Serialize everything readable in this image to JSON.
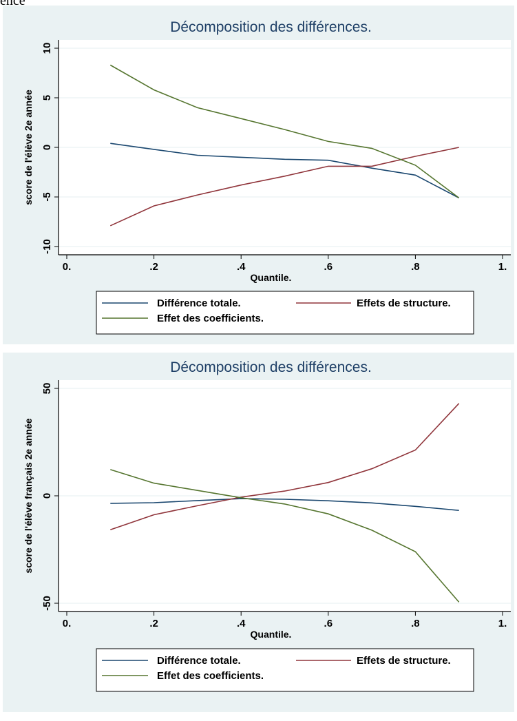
{
  "page": {
    "clipped_heading": "ence"
  },
  "chart_data": [
    {
      "type": "line",
      "title": "Décomposition des différences.",
      "xlabel": "Quantile.",
      "ylabel": "score de l'élève 2e année",
      "xlim": [
        0,
        1
      ],
      "ylim": [
        -10,
        10
      ],
      "x_ticks": [
        0,
        0.2,
        0.4,
        0.6,
        0.8,
        1
      ],
      "x_tick_labels": [
        "0.",
        ".2",
        ".4",
        ".6",
        ".8",
        "1."
      ],
      "y_ticks": [
        -10,
        -5,
        0,
        5,
        10
      ],
      "y_tick_labels": [
        "-10",
        "-5",
        "0",
        "5",
        "10"
      ],
      "grid": true,
      "legend_position": "bottom",
      "x": [
        0.1,
        0.2,
        0.3,
        0.4,
        0.5,
        0.6,
        0.7,
        0.8,
        0.9
      ],
      "series": [
        {
          "name": "Différence totale.",
          "color": "#1a476f",
          "values": [
            0.4,
            -0.2,
            -0.8,
            -1.0,
            -1.2,
            -1.3,
            -2.1,
            -2.8,
            -5.1
          ]
        },
        {
          "name": "Effets de structure.",
          "color": "#90353b",
          "values": [
            -7.9,
            -5.9,
            -4.8,
            -3.8,
            -2.9,
            -1.9,
            -1.9,
            -0.9,
            0.0
          ]
        },
        {
          "name": "Effet des coefficients.",
          "color": "#55752f",
          "values": [
            8.3,
            5.8,
            4.0,
            2.9,
            1.8,
            0.6,
            -0.1,
            -1.8,
            -5.1
          ]
        }
      ]
    },
    {
      "type": "line",
      "title": "Décomposition des différences.",
      "xlabel": "Quantile.",
      "ylabel": "score de l'élève français 2e année",
      "xlim": [
        0,
        1
      ],
      "ylim": [
        -50,
        50
      ],
      "x_ticks": [
        0,
        0.2,
        0.4,
        0.6,
        0.8,
        1
      ],
      "x_tick_labels": [
        "0.",
        ".2",
        ".4",
        ".6",
        ".8",
        "1."
      ],
      "y_ticks": [
        -50,
        0,
        50
      ],
      "y_tick_labels": [
        "-50",
        "0",
        "50"
      ],
      "grid": true,
      "legend_position": "bottom",
      "x": [
        0.1,
        0.2,
        0.3,
        0.4,
        0.5,
        0.6,
        0.7,
        0.8,
        0.9
      ],
      "series": [
        {
          "name": "Différence totale.",
          "color": "#1a476f",
          "values": [
            -3.5,
            -3.2,
            -2.2,
            -1.3,
            -1.6,
            -2.3,
            -3.3,
            -4.9,
            -6.8
          ]
        },
        {
          "name": "Effets de structure.",
          "color": "#90353b",
          "values": [
            -15.8,
            -8.8,
            -4.6,
            -0.6,
            2.2,
            6.2,
            12.6,
            21.3,
            43.0
          ]
        },
        {
          "name": "Effet des coefficients.",
          "color": "#55752f",
          "values": [
            12.2,
            5.9,
            2.5,
            -0.9,
            -3.8,
            -8.4,
            -16.0,
            -26.0,
            -49.5
          ]
        }
      ]
    }
  ]
}
